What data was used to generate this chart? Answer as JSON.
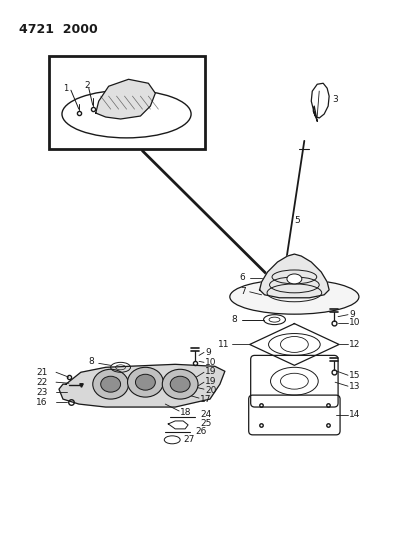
{
  "title": "4721  2000",
  "bg_color": "#ffffff",
  "line_color": "#1a1a1a",
  "text_color": "#1a1a1a",
  "fig_width": 4.08,
  "fig_height": 5.33,
  "dpi": 100
}
